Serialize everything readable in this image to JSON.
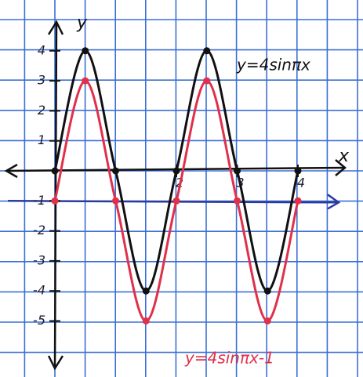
{
  "chart_data": {
    "type": "line",
    "x_label": "x",
    "y_label": "y",
    "x": [
      0,
      0.5,
      1,
      1.5,
      2,
      2.5,
      3,
      3.5,
      4
    ],
    "series": [
      {
        "name": "y=4sinπx",
        "color": "#111111",
        "values": [
          0,
          4,
          0,
          -4,
          0,
          4,
          0,
          -4,
          0
        ]
      },
      {
        "name": "y=4sinπx-1",
        "color": "#e0304a",
        "values": [
          -1,
          3,
          -1,
          -5,
          -1,
          3,
          -1,
          -5,
          -1
        ]
      }
    ],
    "xticks": [
      2,
      3,
      4
    ],
    "yticks": [
      4,
      3,
      2,
      1,
      -1,
      -2,
      -3,
      -4,
      -5
    ],
    "midline": -1,
    "midline_color": "#2b3aa0",
    "grid_color": "#3b6fd6"
  }
}
